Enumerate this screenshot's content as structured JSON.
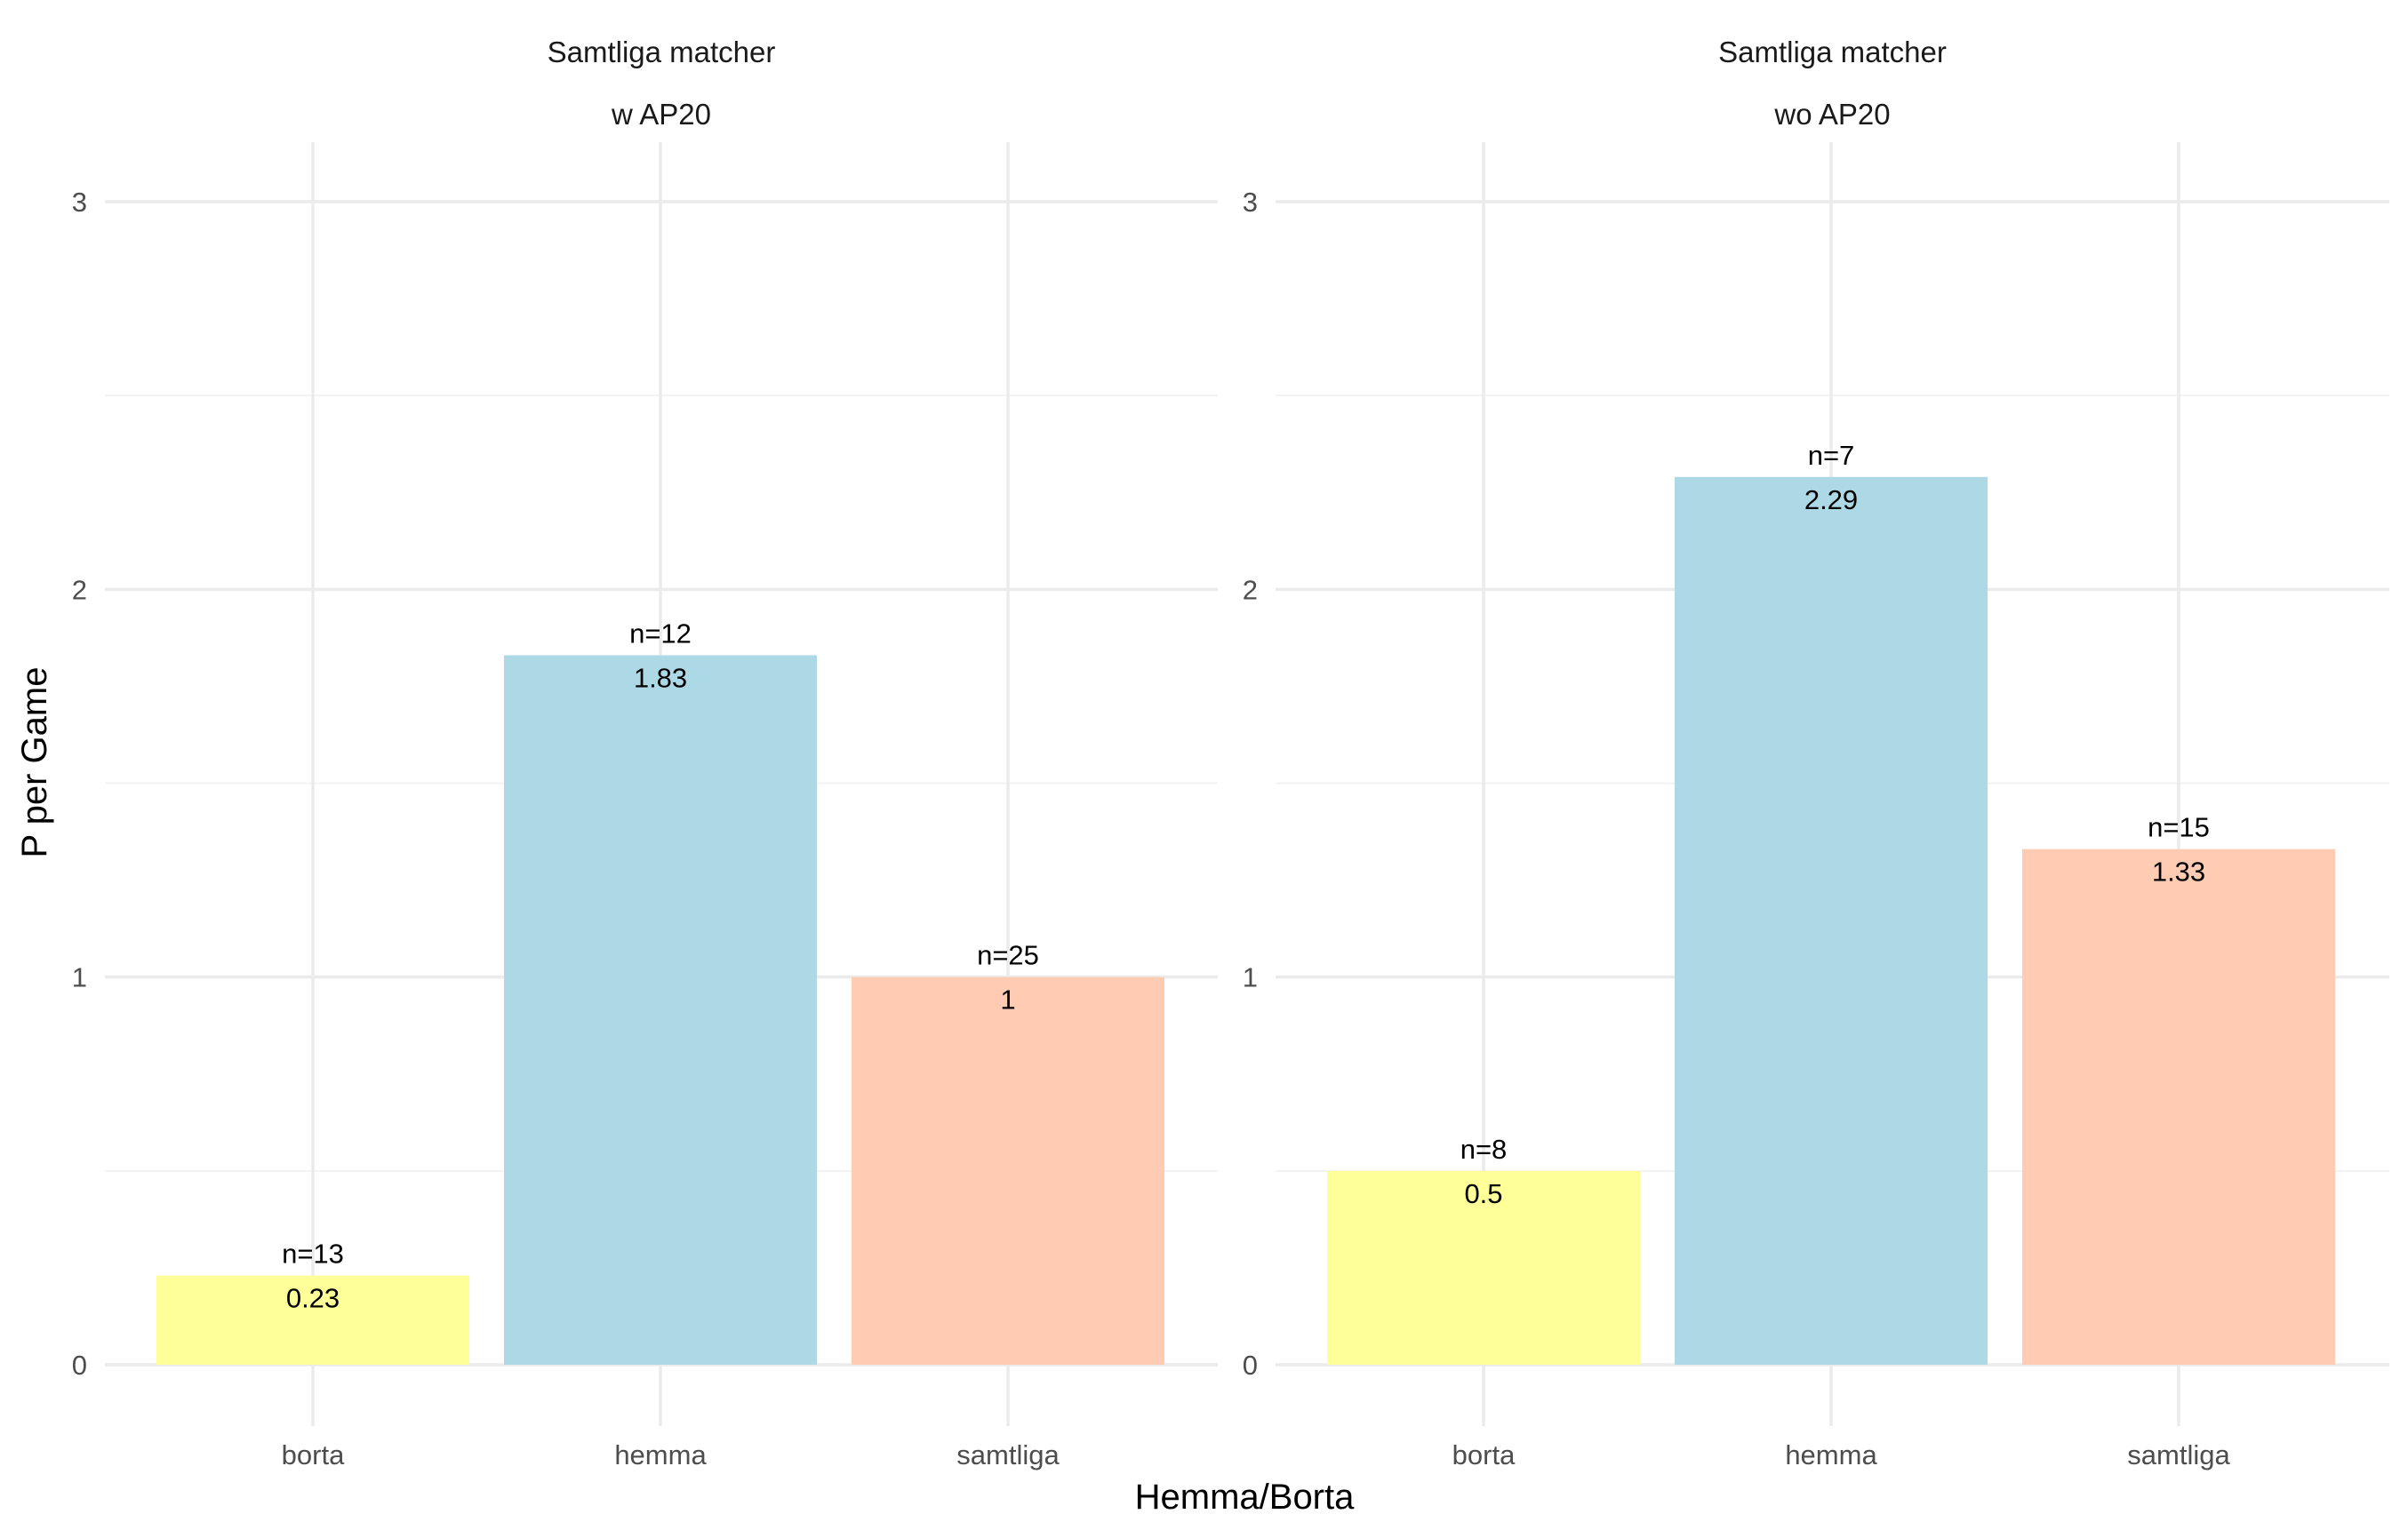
{
  "chart_data": {
    "type": "bar",
    "xlabel": "Hemma/Borta",
    "ylabel": "P per Game",
    "ylim": [
      0,
      3
    ],
    "yticks": [
      "0",
      "1",
      "2",
      "3"
    ],
    "categories": [
      "borta",
      "hemma",
      "samtliga"
    ],
    "colors": [
      "#ffff99",
      "#add8e6",
      "#ffccb3"
    ],
    "panels": [
      {
        "strip_line1": "Samtliga matcher",
        "strip_line2": "w AP20",
        "values": [
          0.23,
          1.83,
          1
        ],
        "value_labels": [
          "0.23",
          "1.83",
          "1"
        ],
        "n_labels": [
          "n=13",
          "n=12",
          "n=25"
        ]
      },
      {
        "strip_line1": "Samtliga matcher",
        "strip_line2": "wo AP20",
        "values": [
          0.5,
          2.29,
          1.33
        ],
        "value_labels": [
          "0.5",
          "2.29",
          "1.33"
        ],
        "n_labels": [
          "n=8",
          "n=7",
          "n=15"
        ]
      }
    ]
  }
}
